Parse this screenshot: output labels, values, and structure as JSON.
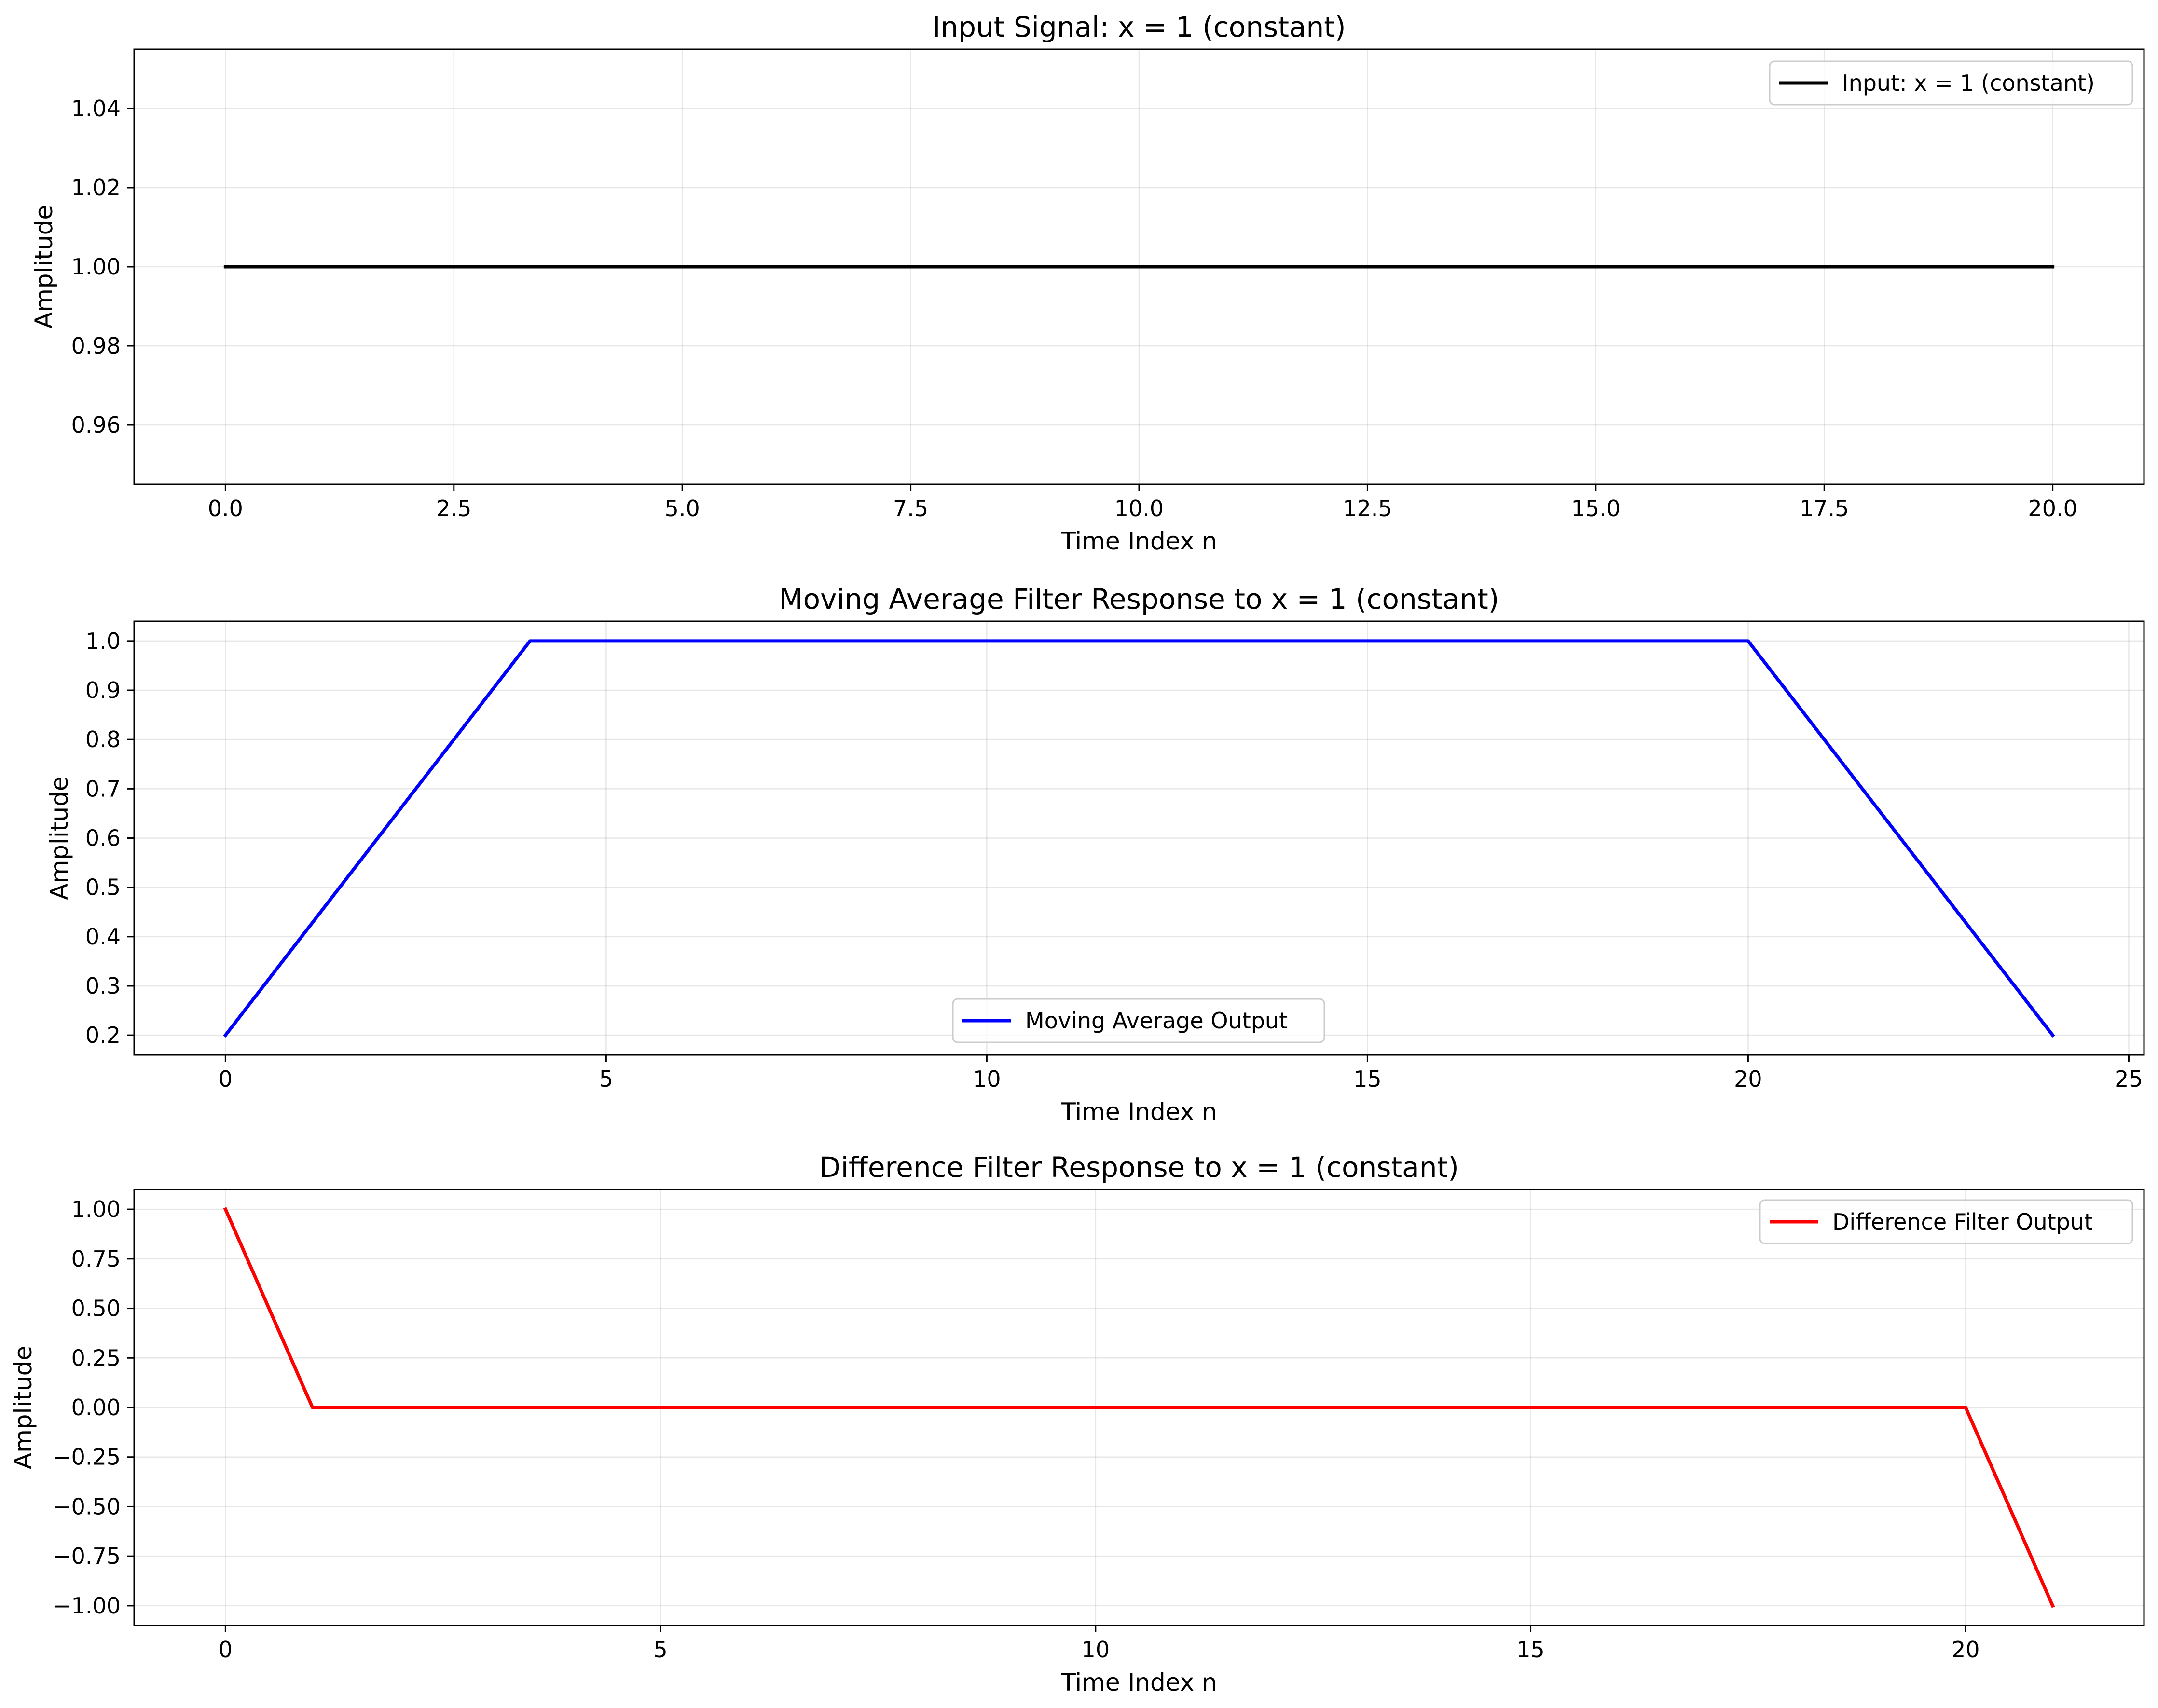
{
  "chart_data": [
    {
      "type": "line",
      "title": "Input Signal: x = 1 (constant)",
      "xlabel": "Time Index n",
      "ylabel": "Amplitude",
      "xlim": [
        -1,
        21
      ],
      "ylim": [
        0.945,
        1.055
      ],
      "xticks": [
        0,
        2.5,
        5,
        7.5,
        10,
        12.5,
        15,
        17.5,
        20
      ],
      "xtick_labels": [
        "0.0",
        "2.5",
        "5.0",
        "7.5",
        "10.0",
        "12.5",
        "15.0",
        "17.5",
        "20.0"
      ],
      "yticks": [
        0.96,
        0.98,
        1.0,
        1.02,
        1.04
      ],
      "ytick_labels": [
        "0.96",
        "0.98",
        "1.00",
        "1.02",
        "1.04"
      ],
      "grid": true,
      "legend": "top-right",
      "series": [
        {
          "name": "Input: x = 1 (constant)",
          "color": "#000000",
          "x": [
            0,
            20
          ],
          "y": [
            1,
            1
          ]
        }
      ]
    },
    {
      "type": "line",
      "title": "Moving Average Filter Response to x = 1 (constant)",
      "xlabel": "Time Index n",
      "ylabel": "Amplitude",
      "xlim": [
        -1.2,
        25.2
      ],
      "ylim": [
        0.16,
        1.04
      ],
      "xticks": [
        0,
        5,
        10,
        15,
        20,
        25
      ],
      "xtick_labels": [
        "0",
        "5",
        "10",
        "15",
        "20",
        "25"
      ],
      "yticks": [
        0.2,
        0.3,
        0.4,
        0.5,
        0.6,
        0.7,
        0.8,
        0.9,
        1.0
      ],
      "ytick_labels": [
        "0.2",
        "0.3",
        "0.4",
        "0.5",
        "0.6",
        "0.7",
        "0.8",
        "0.9",
        "1.0"
      ],
      "grid": true,
      "legend": "lower-center",
      "series": [
        {
          "name": "Moving Average Output",
          "color": "#0000ff",
          "x": [
            0,
            1,
            2,
            3,
            4,
            5,
            6,
            7,
            8,
            9,
            10,
            11,
            12,
            13,
            14,
            15,
            16,
            17,
            18,
            19,
            20,
            21,
            22,
            23,
            24
          ],
          "y": [
            0.2,
            0.4,
            0.6,
            0.8,
            1.0,
            1.0,
            1.0,
            1.0,
            1.0,
            1.0,
            1.0,
            1.0,
            1.0,
            1.0,
            1.0,
            1.0,
            1.0,
            1.0,
            1.0,
            1.0,
            1.0,
            0.8,
            0.6,
            0.4,
            0.2
          ]
        }
      ]
    },
    {
      "type": "line",
      "title": "Difference Filter Response to x = 1 (constant)",
      "xlabel": "Time Index n",
      "ylabel": "Amplitude",
      "xlim": [
        -1.05,
        22.05
      ],
      "ylim": [
        -1.1,
        1.1
      ],
      "xticks": [
        0,
        5,
        10,
        15,
        20
      ],
      "xtick_labels": [
        "0",
        "5",
        "10",
        "15",
        "20"
      ],
      "yticks": [
        -1.0,
        -0.75,
        -0.5,
        -0.25,
        0.0,
        0.25,
        0.5,
        0.75,
        1.0
      ],
      "ytick_labels": [
        "−1.00",
        "−0.75",
        "−0.50",
        "−0.25",
        "0.00",
        "0.25",
        "0.50",
        "0.75",
        "1.00"
      ],
      "grid": true,
      "legend": "top-right",
      "series": [
        {
          "name": "Difference Filter Output",
          "color": "#ff0000",
          "x": [
            0,
            1,
            2,
            3,
            4,
            5,
            6,
            7,
            8,
            9,
            10,
            11,
            12,
            13,
            14,
            15,
            16,
            17,
            18,
            19,
            20,
            21
          ],
          "y": [
            1,
            0,
            0,
            0,
            0,
            0,
            0,
            0,
            0,
            0,
            0,
            0,
            0,
            0,
            0,
            0,
            0,
            0,
            0,
            0,
            0,
            -1
          ]
        }
      ]
    }
  ]
}
